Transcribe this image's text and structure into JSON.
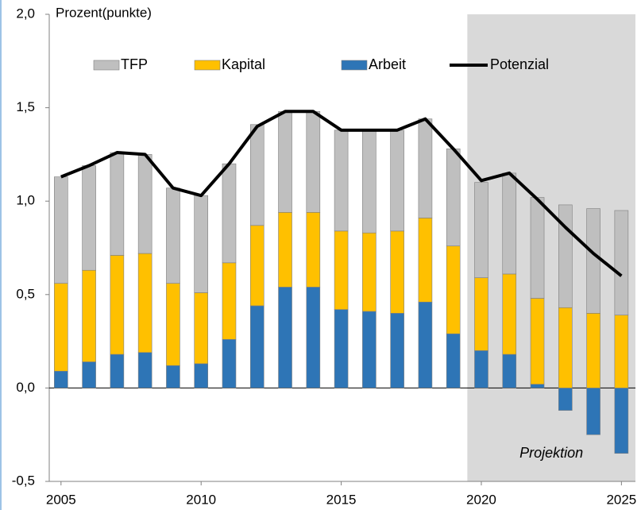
{
  "chart_data": {
    "type": "stacked_bar_line",
    "y_label": "Prozent(punkte)",
    "x": [
      2005,
      2006,
      2007,
      2008,
      2009,
      2010,
      2011,
      2012,
      2013,
      2014,
      2015,
      2016,
      2017,
      2018,
      2019,
      2020,
      2021,
      2022,
      2023,
      2024,
      2025
    ],
    "xlim": [
      2004.58,
      2025.5
    ],
    "xticks": [
      2005,
      2010,
      2015,
      2020,
      2025
    ],
    "ylim": [
      -0.5,
      2.0
    ],
    "yticks": [
      {
        "value": -0.5,
        "label": "-0,5"
      },
      {
        "value": 0,
        "label": "0,0"
      },
      {
        "value": 0.5,
        "label": "0,5"
      },
      {
        "value": 1.0,
        "label": "1,0"
      },
      {
        "value": 1.5,
        "label": "1,5"
      },
      {
        "value": 2.0,
        "label": "2,0"
      }
    ],
    "series": [
      {
        "name": "TFP",
        "color": "#bfbfbf",
        "kind": "bar",
        "values": [
          0.57,
          0.56,
          0.55,
          0.53,
          0.51,
          0.52,
          0.53,
          0.54,
          0.54,
          0.54,
          0.54,
          0.55,
          0.54,
          0.53,
          0.52,
          0.51,
          0.54,
          0.54,
          0.55,
          0.56,
          0.56
        ]
      },
      {
        "name": "Kapital",
        "color": "#ffc000",
        "kind": "bar",
        "values": [
          0.47,
          0.49,
          0.53,
          0.53,
          0.44,
          0.38,
          0.41,
          0.43,
          0.4,
          0.4,
          0.42,
          0.42,
          0.44,
          0.45,
          0.47,
          0.39,
          0.43,
          0.46,
          0.43,
          0.4,
          0.39
        ]
      },
      {
        "name": "Arbeit",
        "color": "#2e75b6",
        "kind": "bar",
        "values": [
          0.09,
          0.14,
          0.18,
          0.19,
          0.12,
          0.13,
          0.26,
          0.44,
          0.54,
          0.54,
          0.42,
          0.41,
          0.4,
          0.46,
          0.29,
          0.2,
          0.18,
          0.02,
          -0.12,
          -0.25,
          -0.35
        ]
      },
      {
        "name": "Potenzial",
        "color": "#000000",
        "kind": "line",
        "values": [
          1.13,
          1.19,
          1.26,
          1.25,
          1.07,
          1.03,
          1.2,
          1.4,
          1.48,
          1.48,
          1.38,
          1.38,
          1.38,
          1.44,
          1.28,
          1.11,
          1.15,
          1.01,
          0.86,
          0.72,
          0.6
        ]
      }
    ],
    "projection": {
      "from": 2019.5,
      "label": "Projektion",
      "color": "#d9d9d9"
    }
  }
}
